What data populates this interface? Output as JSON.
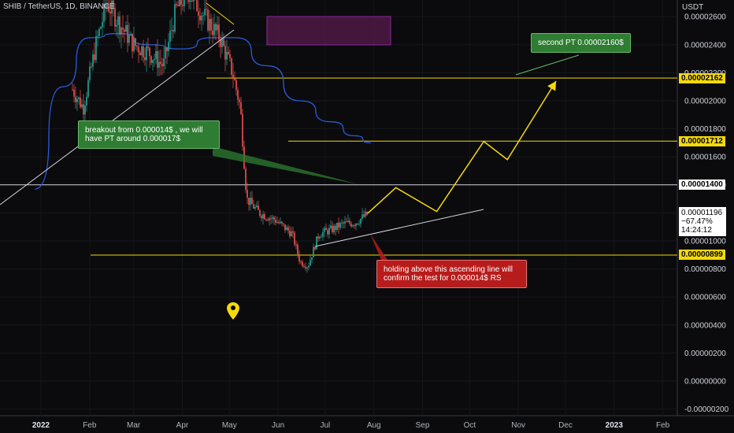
{
  "header": {
    "title": "SHIB / TetherUS, 1D, BINANCE"
  },
  "currency": "USDT",
  "colors": {
    "up": "#26a69a",
    "down": "#ef5350",
    "ma": "#2a5bd7",
    "annotation": "#f5d90a",
    "trendline": "#d1d4dc"
  },
  "chart_data": {
    "type": "candlestick",
    "symbol": "SHIB / TetherUS",
    "timeframe": "1D",
    "exchange": "BINANCE",
    "y_axis": {
      "ticks": [
        "0.00002600",
        "0.00002400",
        "0.00002200",
        "0.00002000",
        "0.00001800",
        "0.00001600",
        "0.00001400",
        "0.00001200",
        "0.00001000",
        "0.00000800",
        "0.00000600",
        "0.00000400",
        "0.00000200",
        "0.00000000",
        "-0.00000200"
      ],
      "tick_values": [
        2.6e-05,
        2.4e-05,
        2.2e-05,
        2e-05,
        1.8e-05,
        1.6e-05,
        1.4e-05,
        1.2e-05,
        1e-05,
        8e-06,
        6e-06,
        4e-06,
        2e-06,
        0,
        -2e-06
      ]
    },
    "x_axis": {
      "labels": [
        "2022",
        "Feb",
        "Mar",
        "Apr",
        "May",
        "Jun",
        "Jul",
        "Aug",
        "Sep",
        "Oct",
        "Nov",
        "Dec",
        "2023",
        "Feb"
      ],
      "bold_labels": [
        "2022",
        "2023"
      ]
    },
    "price_tags": [
      {
        "label": "0.00002162",
        "value": 2.162e-05,
        "style": "yellow"
      },
      {
        "label": "0.00001712",
        "value": 1.712e-05,
        "style": "yellow"
      },
      {
        "label": "0.00001400",
        "value": 1.4e-05,
        "style": "white"
      },
      {
        "label": "0.00000899",
        "value": 8.99e-06,
        "style": "yellow"
      }
    ],
    "current": {
      "price": "0.00001196",
      "change": "−67.47%",
      "countdown": "14:24:12",
      "value": 1.196e-05
    },
    "horizontal_lines": [
      {
        "value": 2.162e-05,
        "color": "yellow",
        "from": "May",
        "to": "end"
      },
      {
        "value": 1.712e-05,
        "color": "yellow",
        "from": "mid-Jun",
        "to": "end"
      },
      {
        "value": 1.4e-05,
        "color": "white",
        "from": "start",
        "to": "end"
      },
      {
        "value": 8.99e-06,
        "color": "yellow",
        "from": "mid-Jan",
        "to": "end"
      }
    ],
    "projection_path": [
      {
        "date": "2022-07-28",
        "value": 1.196e-05
      },
      {
        "date": "2022-08-15",
        "value": 1.38e-05
      },
      {
        "date": "2022-09-10",
        "value": 1.21e-05
      },
      {
        "date": "2022-10-10",
        "value": 1.71e-05
      },
      {
        "date": "2022-10-25",
        "value": 1.58e-05
      },
      {
        "date": "2022-11-25",
        "value": 2.14e-05
      }
    ],
    "annotations": [
      {
        "text": "breakout from 0.000014$ , we will have PT around 0.000017$",
        "style": "green"
      },
      {
        "text": "second PT 0.00002160$",
        "style": "green"
      },
      {
        "text": "holding above this ascending line will confirm the test for 0.000014$ RS",
        "style": "red"
      }
    ]
  }
}
